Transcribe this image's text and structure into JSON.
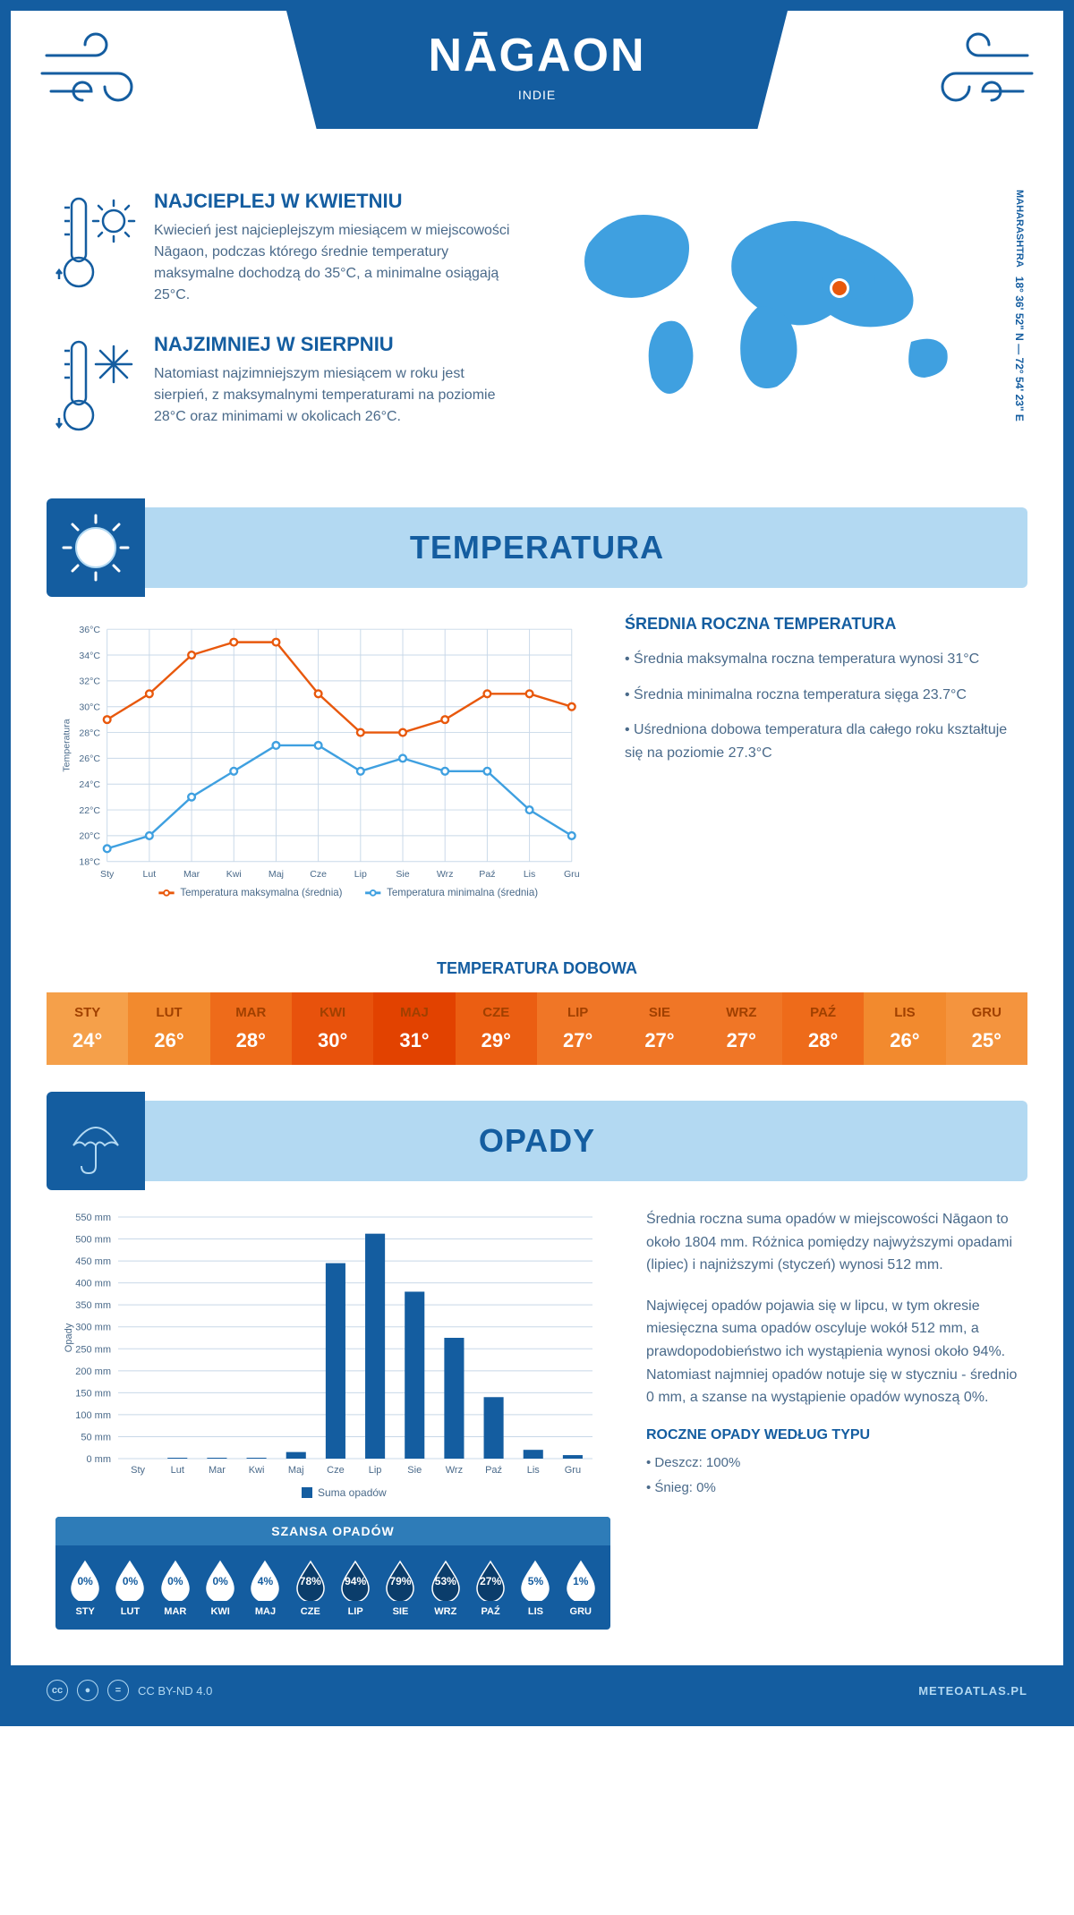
{
  "header": {
    "city": "NĀGAON",
    "country": "INDIE"
  },
  "coords": {
    "region": "MAHARASHTRA",
    "lat": "18° 36' 52\" N",
    "sep": "—",
    "lon": "72° 54' 23\" E"
  },
  "facts": {
    "hot": {
      "title": "NAJCIEPLEJ W KWIETNIU",
      "body": "Kwiecień jest najcieplejszym miesiącem w miejscowości Nāgaon, podczas którego średnie temperatury maksymalne dochodzą do 35°C, a minimalne osiągają 25°C."
    },
    "cold": {
      "title": "NAJZIMNIEJ W SIERPNIU",
      "body": "Natomiast najzimniejszym miesiącem w roku jest sierpień, z maksymalnymi temperaturami na poziomie 28°C oraz minimami w okolicach 26°C."
    }
  },
  "sections": {
    "temp": "TEMPERATURA",
    "precip": "OPADY"
  },
  "temp_chart": {
    "months": [
      "Sty",
      "Lut",
      "Mar",
      "Kwi",
      "Maj",
      "Cze",
      "Lip",
      "Sie",
      "Wrz",
      "Paź",
      "Lis",
      "Gru"
    ],
    "ylabel": "Temperatura",
    "ymin": 18,
    "ymax": 36,
    "ystep": 2,
    "max_series": [
      29,
      31,
      34,
      35,
      35,
      31,
      28,
      28,
      29,
      31,
      31,
      30
    ],
    "min_series": [
      19,
      20,
      23,
      25,
      27,
      27,
      25,
      26,
      25,
      25,
      22,
      20
    ],
    "max_color": "#e8580c",
    "min_color": "#3fa0e0",
    "grid_color": "#c8d8e8",
    "legend_max": "Temperatura maksymalna (średnia)",
    "legend_min": "Temperatura minimalna (średnia)"
  },
  "temp_info": {
    "title": "ŚREDNIA ROCZNA TEMPERATURA",
    "b1": "• Średnia maksymalna roczna temperatura wynosi 31°C",
    "b2": "• Średnia minimalna roczna temperatura sięga 23.7°C",
    "b3": "• Uśredniona dobowa temperatura dla całego roku kształtuje się na poziomie 27.3°C"
  },
  "daily": {
    "title": "TEMPERATURA DOBOWA",
    "months": [
      "STY",
      "LUT",
      "MAR",
      "KWI",
      "MAJ",
      "CZE",
      "LIP",
      "SIE",
      "WRZ",
      "PAŹ",
      "LIS",
      "GRU"
    ],
    "values": [
      "24°",
      "26°",
      "28°",
      "30°",
      "31°",
      "29°",
      "27°",
      "27°",
      "27°",
      "28°",
      "26°",
      "25°"
    ],
    "colors": [
      "#f5a04a",
      "#f28a2e",
      "#ee6b1a",
      "#e8520c",
      "#e24200",
      "#eb5e12",
      "#f07626",
      "#f07626",
      "#f07626",
      "#ee6b1a",
      "#f28a2e",
      "#f4943e"
    ]
  },
  "precip_chart": {
    "months": [
      "Sty",
      "Lut",
      "Mar",
      "Kwi",
      "Maj",
      "Cze",
      "Lip",
      "Sie",
      "Wrz",
      "Paź",
      "Lis",
      "Gru"
    ],
    "ylabel": "Opady",
    "ymax": 550,
    "ystep": 50,
    "values": [
      0,
      2,
      2,
      2,
      15,
      445,
      512,
      380,
      275,
      140,
      20,
      8
    ],
    "bar_color": "#145da0",
    "legend": "Suma opadów"
  },
  "precip_info": {
    "p1": "Średnia roczna suma opadów w miejscowości Nāgaon to około 1804 mm. Różnica pomiędzy najwyższymi opadami (lipiec) i najniższymi (styczeń) wynosi 512 mm.",
    "p2": "Najwięcej opadów pojawia się w lipcu, w tym okresie miesięczna suma opadów oscyluje wokół 512 mm, a prawdopodobieństwo ich wystąpienia wynosi około 94%. Natomiast najmniej opadów notuje się w styczniu - średnio 0 mm, a szanse na wystąpienie opadów wynoszą 0%."
  },
  "chance": {
    "title": "SZANSA OPADÓW",
    "months": [
      "STY",
      "LUT",
      "MAR",
      "KWI",
      "MAJ",
      "CZE",
      "LIP",
      "SIE",
      "WRZ",
      "PAŹ",
      "LIS",
      "GRU"
    ],
    "pct": [
      0,
      0,
      0,
      0,
      4,
      78,
      94,
      79,
      53,
      27,
      5,
      1
    ]
  },
  "type": {
    "title": "ROCZNE OPADY WEDŁUG TYPU",
    "rain": "• Deszcz: 100%",
    "snow": "• Śnieg: 0%"
  },
  "footer": {
    "license": "CC BY-ND 4.0",
    "site": "METEOATLAS.PL"
  }
}
